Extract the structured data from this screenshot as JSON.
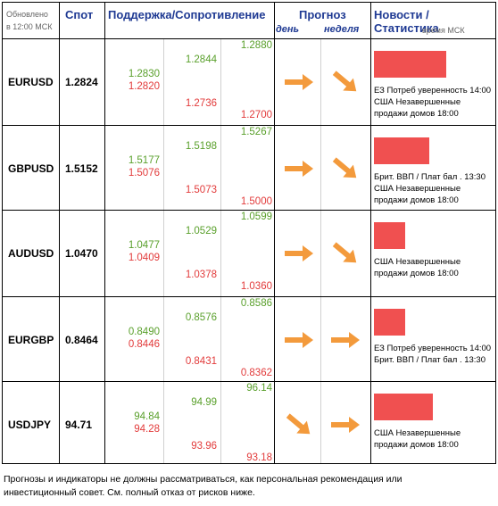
{
  "header": {
    "updated_line1": "Обновлено",
    "updated_line2": "в 12:00 МСК",
    "spot": "Спот",
    "support": "Поддержка/Сопротивление",
    "forecast": "Прогноз",
    "day": "день",
    "week": "неделя",
    "news": "Новости / Статистика",
    "msk_time": "время МСК"
  },
  "rows": [
    {
      "pair": "EURUSD",
      "spot": "1.2824",
      "c1": [
        "1.2830",
        "1.2820"
      ],
      "c2": [
        "1.2844",
        "1.2736"
      ],
      "c3": [
        "1.2880",
        "1.2700"
      ],
      "day": "right",
      "week": "down-right",
      "bar_fraction": 0.58,
      "news": [
        "ЕЗ Потреб уверенность 14:00",
        "США Незавершенные",
        "продажи домов 18:00"
      ]
    },
    {
      "pair": "GBPUSD",
      "spot": "1.5152",
      "c1": [
        "1.5177",
        "1.5076"
      ],
      "c2": [
        "1.5198",
        "1.5073"
      ],
      "c3": [
        "1.5267",
        "1.5000"
      ],
      "day": "right",
      "week": "down-right",
      "bar_fraction": 0.44,
      "news": [
        "Брит. ВВП / Плат бал . 13:30",
        "США Незавершенные",
        "продажи домов 18:00"
      ]
    },
    {
      "pair": "AUDUSD",
      "spot": "1.0470",
      "c1": [
        "1.0477",
        "1.0409"
      ],
      "c2": [
        "1.0529",
        "1.0378"
      ],
      "c3": [
        "1.0599",
        "1.0360"
      ],
      "day": "right",
      "week": "down-right",
      "bar_fraction": 0.25,
      "news": [
        "США Незавершенные",
        "продажи домов 18:00"
      ]
    },
    {
      "pair": "EURGBP",
      "spot": "0.8464",
      "c1": [
        "0.8490",
        "0.8446"
      ],
      "c2": [
        "0.8576",
        "0.8431"
      ],
      "c3": [
        "0.8586",
        "0.8362"
      ],
      "day": "right",
      "week": "right",
      "bar_fraction": 0.25,
      "news": [
        "ЕЗ Потреб уверенность 14:00",
        "Брит. ВВП / Плат бал . 13:30"
      ]
    },
    {
      "pair": "USDJPY",
      "spot": "94.71",
      "c1": [
        "94.84",
        "94.28"
      ],
      "c2": [
        "94.99",
        "93.96"
      ],
      "c3": [
        "96.14",
        "93.18"
      ],
      "day": "down-right",
      "week": "right",
      "bar_fraction": 0.47,
      "news": [
        "США Незавершенные",
        "продажи домов 18:00"
      ]
    }
  ],
  "footer": {
    "line1": "Прогнозы и индикаторы не должны рассматриваться, как персональная рекомендация или",
    "line2": "инвестиционный совет. См. полный отказ от рисков ниже."
  },
  "colors": {
    "support": "#5aa02c",
    "resistance": "#e23b3b",
    "arrow": "#f39a3c",
    "news_bar": "#f05050"
  }
}
